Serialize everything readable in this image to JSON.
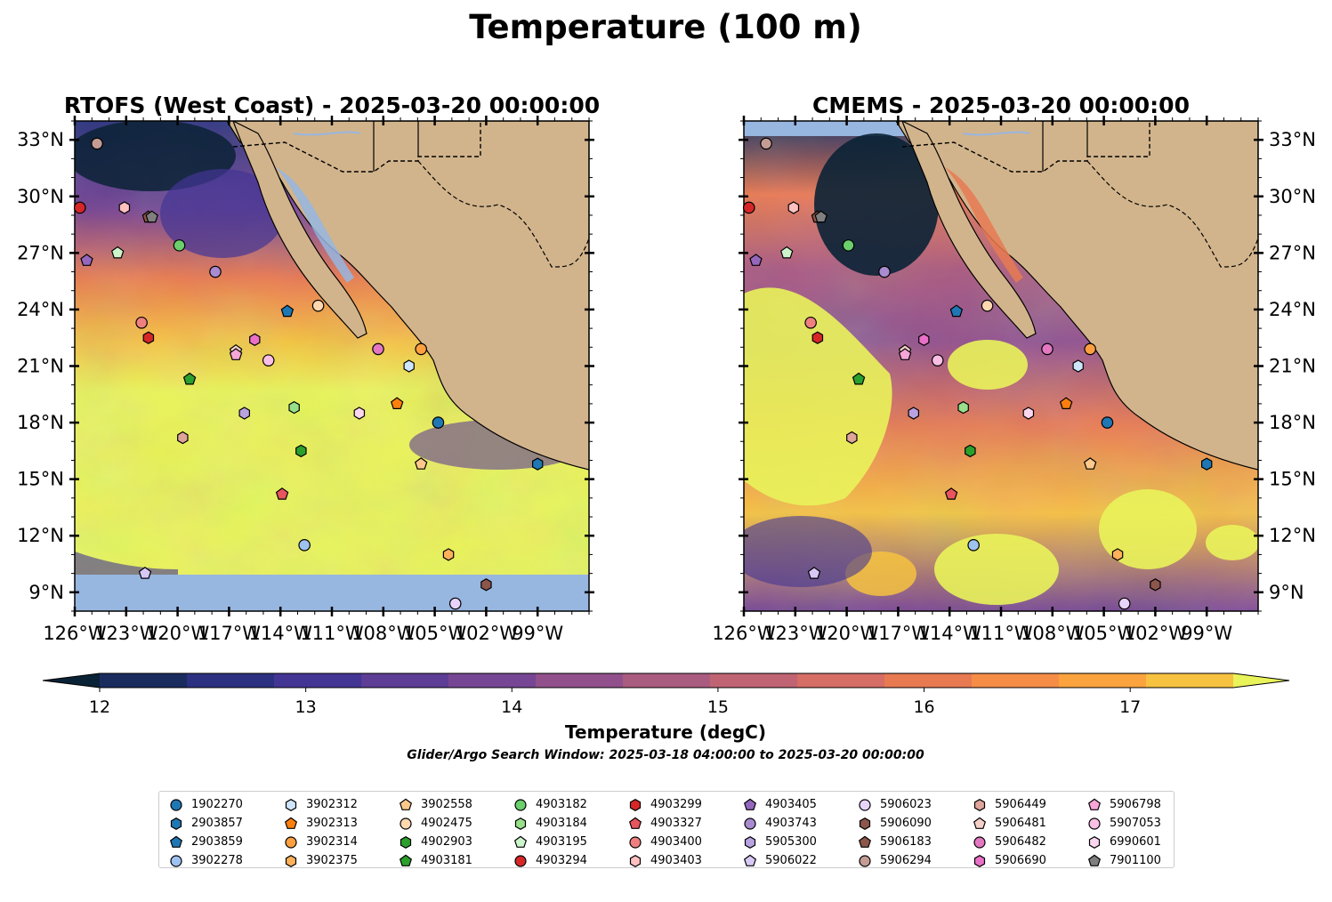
{
  "suptitle": "Temperature (100 m)",
  "colors": {
    "land": "#d2b48c",
    "outside_domain": "#97b6e0",
    "coastline": "#000000",
    "rivers": "#97b6e0",
    "borders": "#000000"
  },
  "chart_data": [
    {
      "type": "heatmap",
      "title": "RTOFS (West Coast) - 2025-03-20 00:00:00",
      "xlim": [
        -126,
        -96
      ],
      "ylim": [
        8,
        34
      ],
      "xticks": [
        -126,
        -123,
        -120,
        -117,
        -114,
        -111,
        -108,
        -105,
        -102,
        -99
      ],
      "yticks": [
        9,
        12,
        15,
        18,
        21,
        24,
        27,
        30,
        33
      ],
      "xtick_labels": [
        "126°W",
        "123°W",
        "120°W",
        "117°W",
        "114°W",
        "111°W",
        "108°W",
        "105°W",
        "102°W",
        "99°W"
      ],
      "ytick_labels": [
        "9°N",
        "12°N",
        "15°N",
        "18°N",
        "21°N",
        "24°N",
        "27°N",
        "30°N",
        "33°N"
      ],
      "ytick_side": "left",
      "data_southern_limit": 10.2
    },
    {
      "type": "heatmap",
      "title": "CMEMS - 2025-03-20 00:00:00",
      "xlim": [
        -126,
        -96
      ],
      "ylim": [
        8,
        34
      ],
      "xticks": [
        -126,
        -123,
        -120,
        -117,
        -114,
        -111,
        -108,
        -105,
        -102,
        -99
      ],
      "yticks": [
        9,
        12,
        15,
        18,
        21,
        24,
        27,
        30,
        33
      ],
      "xtick_labels": [
        "126°W",
        "123°W",
        "120°W",
        "117°W",
        "114°W",
        "111°W",
        "108°W",
        "105°W",
        "102°W",
        "99°W"
      ],
      "ytick_labels": [
        "9°N",
        "12°N",
        "15°N",
        "18°N",
        "21°N",
        "24°N",
        "27°N",
        "30°N",
        "33°N"
      ],
      "ytick_side": "right",
      "data_northern_limit": 33.2
    }
  ],
  "colorbar": {
    "label": "Temperature (degC)",
    "min": 11.5,
    "max": 17.5,
    "step": 0.5,
    "tick_values": [
      12,
      13,
      14,
      15,
      16,
      17
    ],
    "tick_labels": [
      "12",
      "13",
      "14",
      "15",
      "16",
      "17"
    ],
    "extend": "both",
    "colors": [
      "#0a2235",
      "#1a2b5e",
      "#2b3180",
      "#433594",
      "#5d3d96",
      "#764694",
      "#91508b",
      "#aa5b80",
      "#c06473",
      "#d66e66",
      "#e87a52",
      "#f58d47",
      "#fba33e",
      "#f6c240",
      "#e9f35a"
    ]
  },
  "search_window": "Glider/Argo Search Window: 2025-03-18 04:00:00 to 2025-03-20 00:00:00",
  "floats": [
    {
      "id": "1902270",
      "marker": "circle",
      "color": "#1f77b4",
      "lon": -104.8,
      "lat": 18.0
    },
    {
      "id": "2903857",
      "marker": "hexagon",
      "color": "#1f77b4",
      "lon": -99.0,
      "lat": 15.8
    },
    {
      "id": "2903859",
      "marker": "pentagon",
      "color": "#1f77b4",
      "lon": -113.6,
      "lat": 23.9
    },
    {
      "id": "3902278",
      "marker": "circle",
      "color": "#9ec3f0",
      "lon": -112.6,
      "lat": 11.5
    },
    {
      "id": "3902312",
      "marker": "hexagon",
      "color": "#cfe5fb",
      "lon": -106.5,
      "lat": 21.0
    },
    {
      "id": "3902313",
      "marker": "pentagon",
      "color": "#ff7f0e",
      "lon": -107.2,
      "lat": 19.0
    },
    {
      "id": "3902314",
      "marker": "circle",
      "color": "#ff9f40",
      "lon": -105.8,
      "lat": 21.9
    },
    {
      "id": "3902375",
      "marker": "hexagon",
      "color": "#ffb05a",
      "lon": -104.2,
      "lat": 11.0
    },
    {
      "id": "3902558",
      "marker": "pentagon",
      "color": "#ffc98c",
      "lon": -105.8,
      "lat": 15.8
    },
    {
      "id": "4902475",
      "marker": "circle",
      "color": "#ffd8b0",
      "lon": -111.8,
      "lat": 24.2
    },
    {
      "id": "4902903",
      "marker": "hexagon",
      "color": "#2ca02c",
      "lon": -112.8,
      "lat": 16.5
    },
    {
      "id": "4903181",
      "marker": "pentagon",
      "color": "#2ca02c",
      "lon": -119.3,
      "lat": 20.3
    },
    {
      "id": "4903182",
      "marker": "circle",
      "color": "#6bcf6b",
      "lon": -119.9,
      "lat": 27.4
    },
    {
      "id": "4903184",
      "marker": "hexagon",
      "color": "#98df8a",
      "lon": -113.2,
      "lat": 18.8
    },
    {
      "id": "4903195",
      "marker": "pentagon",
      "color": "#ccf5cc",
      "lon": -123.5,
      "lat": 27.0
    },
    {
      "id": "4903294",
      "marker": "circle",
      "color": "#d62728",
      "lon": -125.7,
      "lat": 29.4
    },
    {
      "id": "4903299",
      "marker": "hexagon",
      "color": "#d62728",
      "lon": -121.7,
      "lat": 22.5
    },
    {
      "id": "4903327",
      "marker": "pentagon",
      "color": "#e8555f",
      "lon": -113.9,
      "lat": 14.2
    },
    {
      "id": "4903400",
      "marker": "circle",
      "color": "#f08080",
      "lon": -122.1,
      "lat": 23.3
    },
    {
      "id": "4903403",
      "marker": "hexagon",
      "color": "#ffc0c0",
      "lon": -123.1,
      "lat": 29.4
    },
    {
      "id": "4903405",
      "marker": "pentagon",
      "color": "#9467bd",
      "lon": -125.3,
      "lat": 26.6
    },
    {
      "id": "4903743",
      "marker": "circle",
      "color": "#a98bd0",
      "lon": -117.8,
      "lat": 26.0
    },
    {
      "id": "5905300",
      "marker": "hexagon",
      "color": "#b9a2e0",
      "lon": -116.1,
      "lat": 18.5
    },
    {
      "id": "5906022",
      "marker": "pentagon",
      "color": "#d8c8f5",
      "lon": -121.9,
      "lat": 10.0
    },
    {
      "id": "5906023",
      "marker": "circle",
      "color": "#e8d4fa",
      "lon": -103.8,
      "lat": 8.4
    },
    {
      "id": "5906090",
      "marker": "hexagon",
      "color": "#8c564b",
      "lon": -102.0,
      "lat": 9.4
    },
    {
      "id": "5906183",
      "marker": "pentagon",
      "color": "#8c564b",
      "lon": -121.7,
      "lat": 28.9
    },
    {
      "id": "5906294",
      "marker": "circle",
      "color": "#c49c94",
      "lon": -124.7,
      "lat": 32.8
    },
    {
      "id": "5906449",
      "marker": "hexagon",
      "color": "#dfa49a",
      "lon": -119.7,
      "lat": 17.2
    },
    {
      "id": "5906481",
      "marker": "pentagon",
      "color": "#f5d0c8",
      "lon": -116.6,
      "lat": 21.8
    },
    {
      "id": "5906482",
      "marker": "circle",
      "color": "#e377c2",
      "lon": -108.3,
      "lat": 21.9
    },
    {
      "id": "5906690",
      "marker": "hexagon",
      "color": "#e96fc7",
      "lon": -115.5,
      "lat": 22.4
    },
    {
      "id": "5906798",
      "marker": "pentagon",
      "color": "#f7a6d8",
      "lon": -116.6,
      "lat": 21.6
    },
    {
      "id": "5907053",
      "marker": "circle",
      "color": "#fbbfe5",
      "lon": -114.7,
      "lat": 21.3
    },
    {
      "id": "6990601",
      "marker": "hexagon",
      "color": "#fcd6ee",
      "lon": -109.4,
      "lat": 18.5
    },
    {
      "id": "7901100",
      "marker": "pentagon",
      "color": "#7f7f7f",
      "lon": -121.5,
      "lat": 28.9
    }
  ]
}
